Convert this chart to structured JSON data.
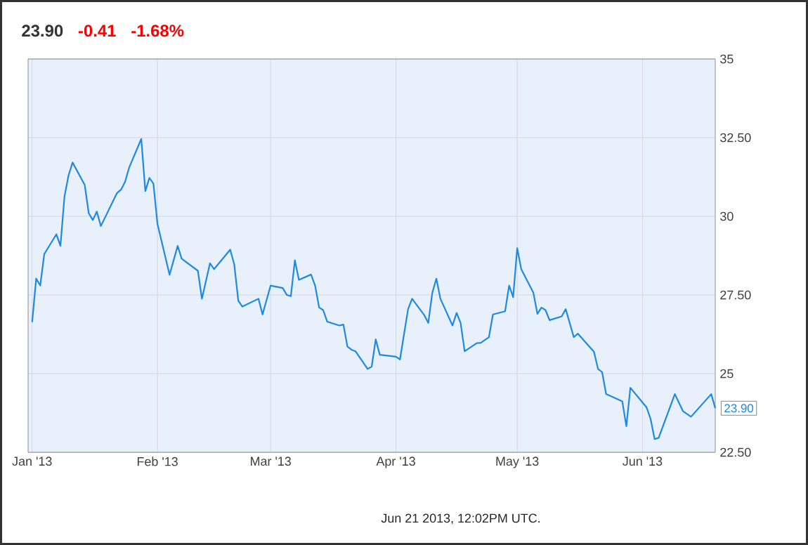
{
  "chart_data": {
    "type": "line",
    "title": "23.90",
    "annotations": [
      "-0.41",
      "-1.68%",
      "Jun 21 2013, 12:02PM UTC.",
      {
        "text": "23.90",
        "x": "2013-06-19",
        "y": 23.9
      }
    ],
    "x": [
      "2013-01-01",
      "2013-01-02",
      "2013-01-03",
      "2013-01-04",
      "2013-01-07",
      "2013-01-08",
      "2013-01-09",
      "2013-01-10",
      "2013-01-11",
      "2013-01-14",
      "2013-01-15",
      "2013-01-16",
      "2013-01-17",
      "2013-01-18",
      "2013-01-22",
      "2013-01-23",
      "2013-01-24",
      "2013-01-25",
      "2013-01-28",
      "2013-01-29",
      "2013-01-30",
      "2013-01-31",
      "2013-02-01",
      "2013-02-04",
      "2013-02-06",
      "2013-02-07",
      "2013-02-11",
      "2013-02-12",
      "2013-02-14",
      "2013-02-15",
      "2013-02-19",
      "2013-02-20",
      "2013-02-21",
      "2013-02-22",
      "2013-02-26",
      "2013-02-27",
      "2013-03-01",
      "2013-03-04",
      "2013-03-05",
      "2013-03-06",
      "2013-03-07",
      "2013-03-08",
      "2013-03-11",
      "2013-03-12",
      "2013-03-13",
      "2013-03-14",
      "2013-03-15",
      "2013-03-18",
      "2013-03-19",
      "2013-03-20",
      "2013-03-21",
      "2013-03-22",
      "2013-03-25",
      "2013-03-26",
      "2013-03-27",
      "2013-03-28",
      "2013-04-01",
      "2013-04-02",
      "2013-04-04",
      "2013-04-05",
      "2013-04-08",
      "2013-04-09",
      "2013-04-10",
      "2013-04-11",
      "2013-04-12",
      "2013-04-15",
      "2013-04-16",
      "2013-04-17",
      "2013-04-18",
      "2013-04-21",
      "2013-04-22",
      "2013-04-24",
      "2013-04-25",
      "2013-04-28",
      "2013-04-29",
      "2013-04-30",
      "2013-05-01",
      "2013-05-02",
      "2013-05-05",
      "2013-05-06",
      "2013-05-07",
      "2013-05-08",
      "2013-05-09",
      "2013-05-12",
      "2013-05-13",
      "2013-05-15",
      "2013-05-16",
      "2013-05-20",
      "2013-05-21",
      "2013-05-22",
      "2013-05-23",
      "2013-05-27",
      "2013-05-28",
      "2013-05-29",
      "2013-06-02",
      "2013-06-03",
      "2013-06-04",
      "2013-06-05",
      "2013-06-09",
      "2013-06-11",
      "2013-06-13",
      "2013-06-18",
      "2013-06-19"
    ],
    "series": [
      {
        "color": "#1e88e5",
        "values": [
          26.64,
          28.02,
          27.8,
          28.8,
          29.43,
          29.06,
          30.63,
          31.3,
          31.71,
          31.0,
          30.1,
          29.88,
          30.15,
          29.69,
          30.74,
          30.85,
          31.1,
          31.55,
          32.46,
          30.8,
          31.22,
          31.04,
          29.76,
          28.14,
          29.06,
          28.65,
          28.27,
          27.38,
          28.51,
          28.32,
          28.94,
          28.47,
          27.32,
          27.13,
          27.38,
          26.88,
          27.8,
          27.72,
          27.5,
          27.46,
          28.6,
          27.98,
          28.15,
          27.8,
          27.1,
          27.02,
          26.65,
          26.53,
          26.56,
          25.86,
          25.76,
          25.71,
          25.15,
          25.22,
          26.09,
          25.6,
          25.54,
          25.45,
          27.05,
          27.38,
          26.86,
          26.61,
          27.57,
          28.02,
          27.38,
          26.53,
          26.93,
          26.61,
          25.71,
          25.97,
          25.98,
          26.16,
          26.88,
          26.98,
          27.8,
          27.43,
          28.99,
          28.32,
          27.57,
          26.9,
          27.1,
          27.02,
          26.7,
          26.82,
          27.05,
          26.16,
          26.27,
          25.69,
          25.15,
          25.05,
          24.35,
          24.12,
          23.33,
          24.55,
          23.93,
          23.56,
          22.92,
          22.96,
          24.35,
          23.81,
          23.63,
          24.35,
          23.9
        ]
      }
    ],
    "xlim": [
      "2012-12-31",
      "2013-06-19"
    ],
    "xticks": [
      {
        "value": "2013-01-01",
        "label": "Jan '13"
      },
      {
        "value": "2013-02-01",
        "label": "Feb '13"
      },
      {
        "value": "2013-03-01",
        "label": "Mar '13"
      },
      {
        "value": "2013-04-01",
        "label": "Apr '13"
      },
      {
        "value": "2013-05-01",
        "label": "May '13"
      },
      {
        "value": "2013-06-01",
        "label": "Jun '13"
      }
    ],
    "ylim": [
      22.5,
      35
    ],
    "yticks": [
      {
        "value": 22.5,
        "label": "22.50"
      },
      25,
      {
        "value": 27.5,
        "label": "27.50"
      },
      30,
      {
        "value": 32.5,
        "label": "32.50"
      },
      35
    ],
    "grid": true,
    "marker": "none",
    "line_style": "solid"
  }
}
